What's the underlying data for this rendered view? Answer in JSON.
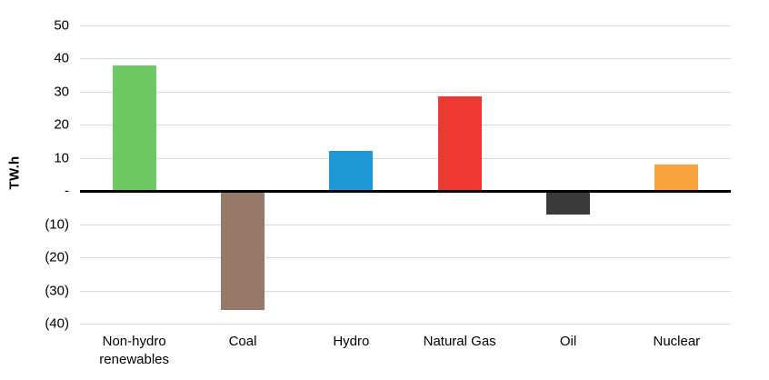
{
  "chart_data": {
    "type": "bar",
    "title": "",
    "xlabel": "",
    "ylabel": "TW.h",
    "ylim": [
      -40,
      50
    ],
    "ytick_step": 10,
    "ytick_labels": [
      "50",
      "40",
      "30",
      "20",
      "10",
      "-",
      "(10)",
      "(20)",
      "(30)",
      "(40)"
    ],
    "categories": [
      "Non-hydro renewables",
      "Coal",
      "Hydro",
      "Natural Gas",
      "Oil",
      "Nuclear"
    ],
    "values": [
      38,
      -36,
      12,
      28.5,
      -7,
      8
    ],
    "bar_colors": [
      "#6ec964",
      "#97796a",
      "#2098d5",
      "#ee3932",
      "#3a3a3a",
      "#f9a33f"
    ],
    "grid": true,
    "gridline_color": "#d9d9d9",
    "zero_line_color": "#000000",
    "legend": "none",
    "background": "#ffffff"
  }
}
